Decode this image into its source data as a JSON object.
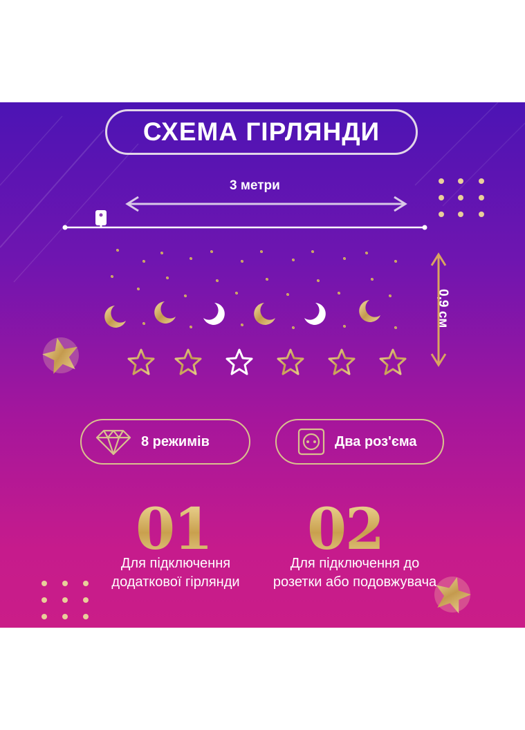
{
  "title": "СХЕМА ГІРЛЯНДИ",
  "width_label": "3 метри",
  "height_label": "0,9 см",
  "features": [
    {
      "icon": "diamond-icon",
      "label": "8 режимів"
    },
    {
      "icon": "socket-icon",
      "label": "Два роз'єма"
    }
  ],
  "sockets": [
    {
      "number": "01",
      "description": "Для підключення додаткової гірлянди"
    },
    {
      "number": "02",
      "description": "Для підключення до розетки або подовжувача"
    }
  ],
  "colors": {
    "gold": "#d7b56a",
    "bg_top": "#4c14b4",
    "bg_bottom": "#ca1d88",
    "text": "#ffffff"
  }
}
